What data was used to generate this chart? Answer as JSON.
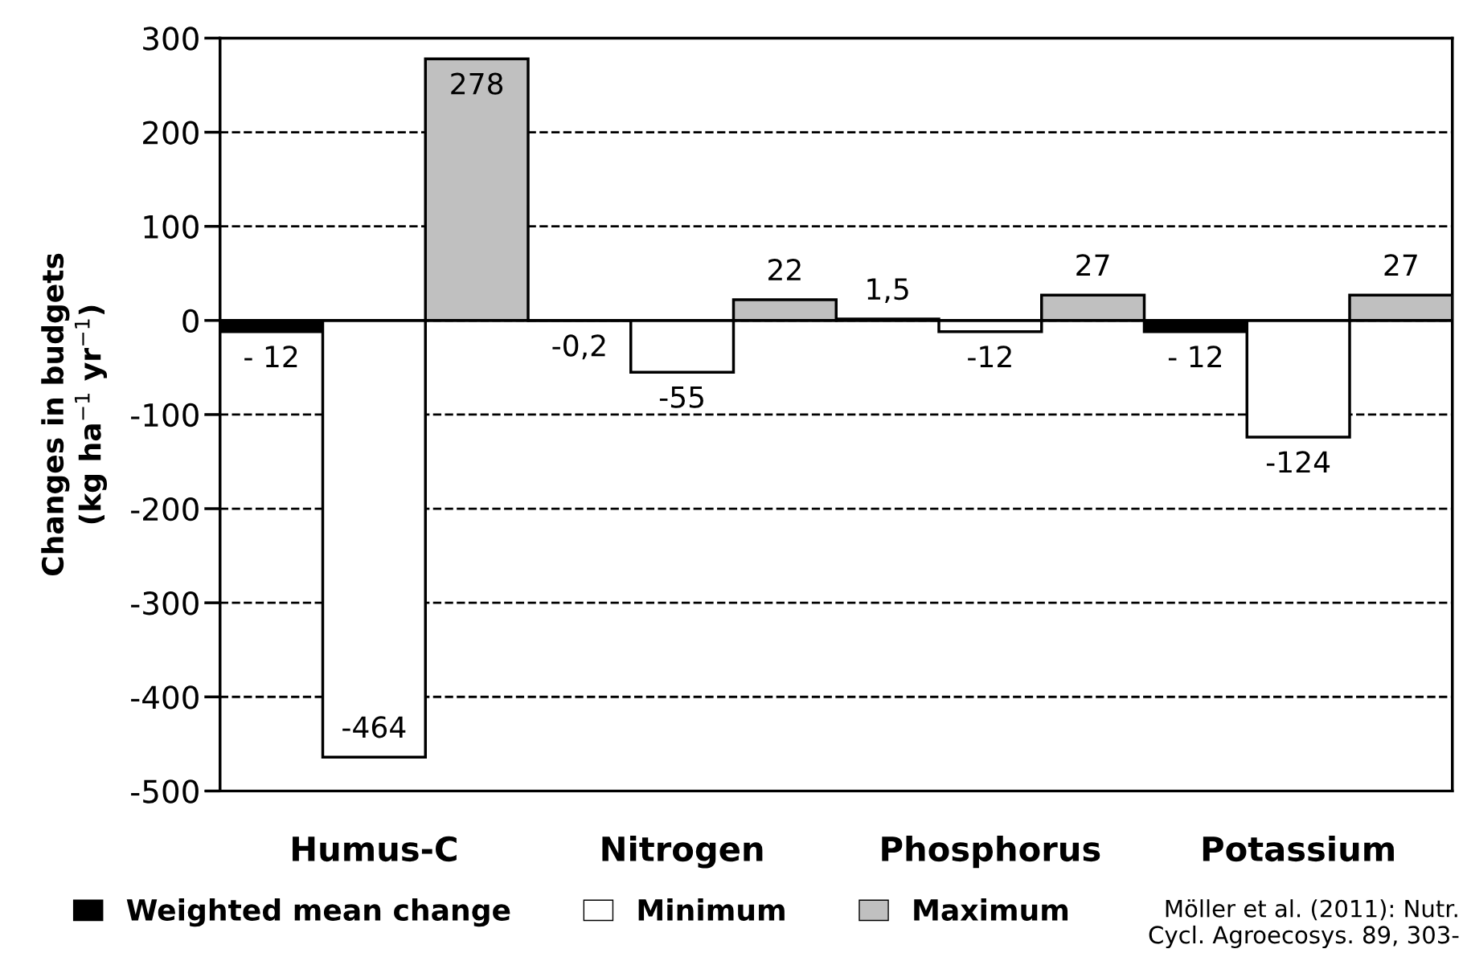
{
  "chart_data": {
    "type": "bar",
    "ylabel": "Changes in budgets\n(kg ha$^{−1}$ yr$^{−1}$)",
    "categories": [
      "Humus-C",
      "Nitrogen",
      "Phosphorus",
      "Potassium"
    ],
    "series": [
      {
        "name": "Weighted mean change",
        "color": "#000000",
        "values": [
          -12,
          -0.2,
          1.5,
          -12
        ],
        "value_labels": [
          "- 12",
          "-0,2",
          "1,5",
          "- 12"
        ]
      },
      {
        "name": "Minimum",
        "color": "#ffffff",
        "values": [
          -464,
          -55,
          -12,
          -124
        ],
        "value_labels": [
          "-464",
          "-55",
          "-12",
          "-124"
        ]
      },
      {
        "name": "Maximum",
        "color": "#c0c0c0",
        "values": [
          278,
          22,
          27,
          27
        ],
        "value_labels": [
          "278",
          "22",
          "27",
          "27"
        ]
      }
    ],
    "ylim": [
      -500,
      300
    ],
    "yticks": [
      300,
      200,
      100,
      0,
      -100,
      -200,
      -300,
      -400,
      -500
    ],
    "grid": "y",
    "legend": "bottom",
    "annotations": [
      "Möller et al. (2011): Nutr.\nCycl. Agroecosys. 89, 303-"
    ]
  }
}
